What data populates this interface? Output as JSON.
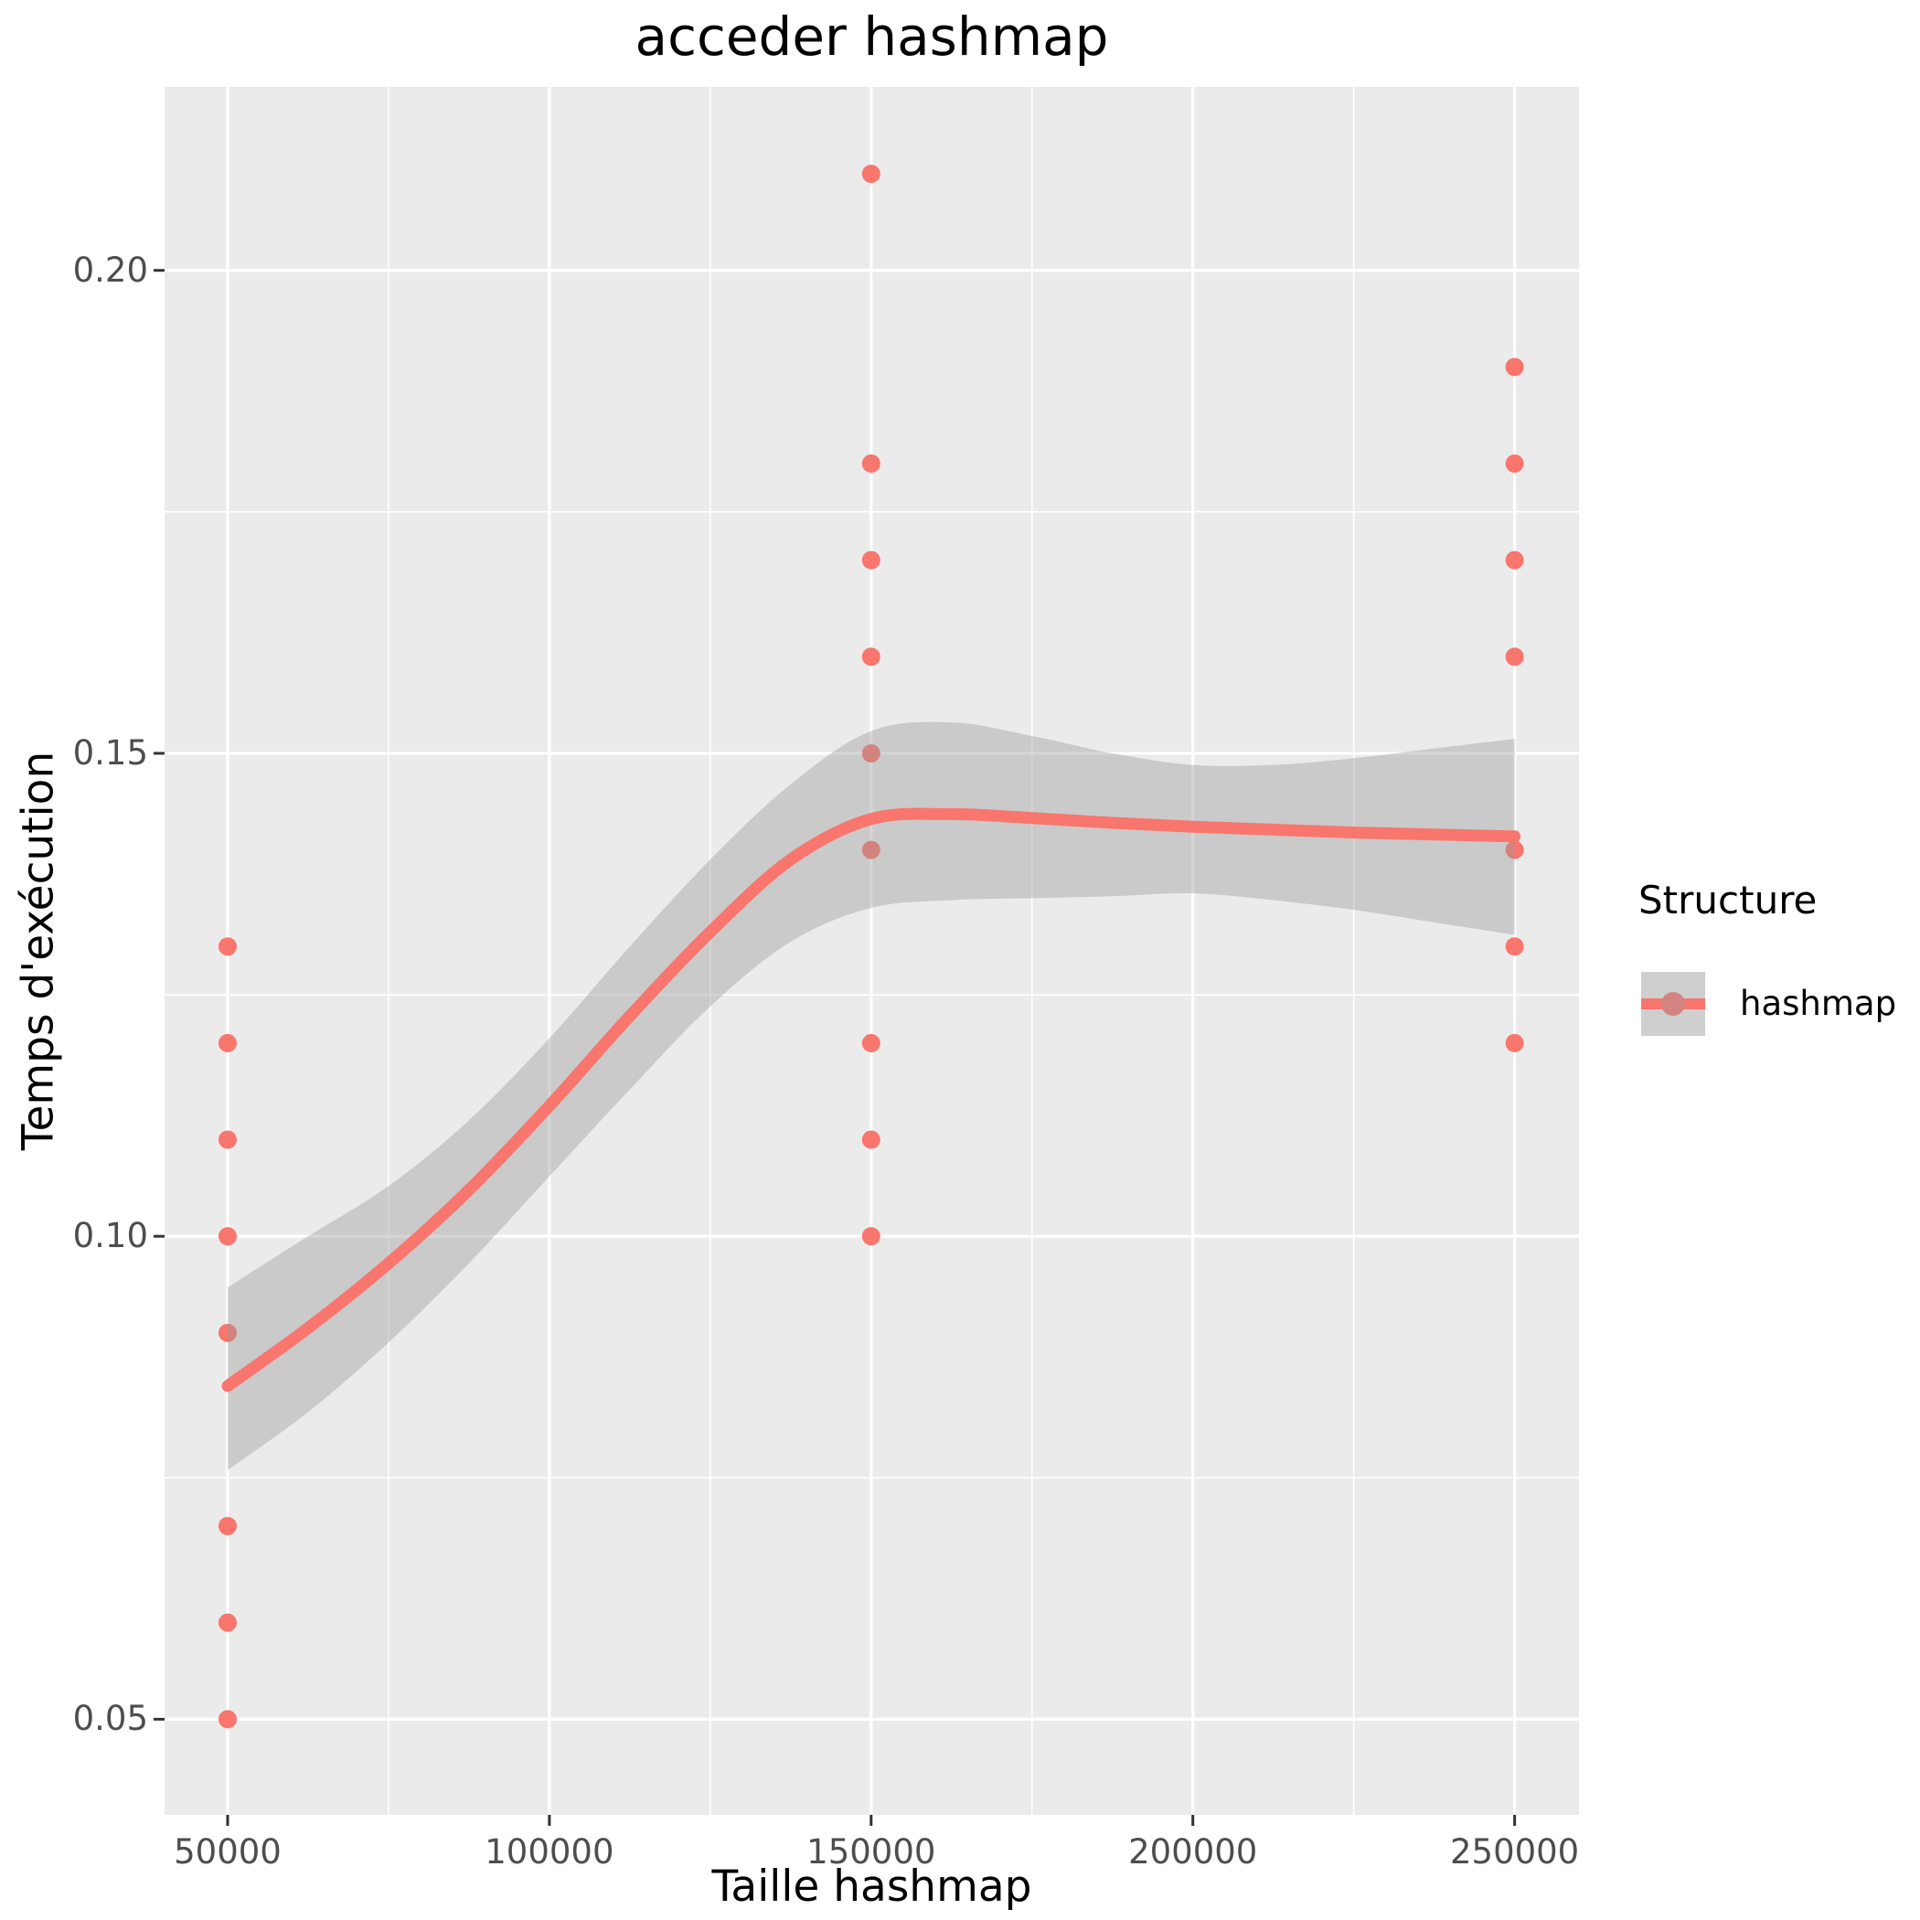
{
  "title": "acceder hashmap",
  "axes": {
    "x": {
      "label": "Taille hashmap",
      "ticks": [
        {
          "value": 50000,
          "label": "50000"
        },
        {
          "value": 100000,
          "label": "100000"
        },
        {
          "value": 150000,
          "label": "150000"
        },
        {
          "value": 200000,
          "label": "200000"
        },
        {
          "value": 250000,
          "label": "250000"
        }
      ],
      "minor": [
        75000,
        125000,
        175000,
        225000
      ],
      "domain": [
        40200,
        260000
      ]
    },
    "y": {
      "label": "Temps d'exécution",
      "ticks": [
        {
          "value": 0.2,
          "label": "0.20"
        },
        {
          "value": 0.15,
          "label": "0.15"
        },
        {
          "value": 0.1,
          "label": "0.10"
        },
        {
          "value": 0.05,
          "label": "0.05"
        }
      ],
      "minor": [
        0.175,
        0.125,
        0.075
      ],
      "domain": [
        0.0401,
        0.219
      ]
    }
  },
  "legend": {
    "title": "Structure",
    "items": [
      {
        "label": "hashmap",
        "color": "#F8766D"
      }
    ]
  },
  "colors": {
    "point": "#F8766D",
    "smooth_line": "#F8766D",
    "ribbon": "#999999",
    "ribbon_alpha": 0.4,
    "panel_bg": "#EBEBEB",
    "grid": "#FFFFFF",
    "axis_tick": "#333333",
    "tick_label": "#4D4D4D",
    "plot_bg": "#FFFFFF"
  },
  "chart_data": {
    "type": "scatter",
    "title": "acceder hashmap",
    "xlabel": "Taille hashmap",
    "ylabel": "Temps d'exécution",
    "xlim": [
      40200,
      260000
    ],
    "ylim": [
      0.0401,
      0.219
    ],
    "grid": true,
    "legend_position": "right",
    "series": [
      {
        "name": "hashmap",
        "points": [
          [
            50000,
            0.13
          ],
          [
            50000,
            0.12
          ],
          [
            50000,
            0.11
          ],
          [
            50000,
            0.1
          ],
          [
            50000,
            0.09
          ],
          [
            50000,
            0.07
          ],
          [
            50000,
            0.06
          ],
          [
            50000,
            0.05
          ],
          [
            150000,
            0.21
          ],
          [
            150000,
            0.18
          ],
          [
            150000,
            0.17
          ],
          [
            150000,
            0.16
          ],
          [
            150000,
            0.15
          ],
          [
            150000,
            0.14
          ],
          [
            150000,
            0.12
          ],
          [
            150000,
            0.11
          ],
          [
            150000,
            0.1
          ],
          [
            250000,
            0.19
          ],
          [
            250000,
            0.18
          ],
          [
            250000,
            0.17
          ],
          [
            250000,
            0.16
          ],
          [
            250000,
            0.14
          ],
          [
            250000,
            0.13
          ],
          [
            250000,
            0.12
          ]
        ],
        "smooth": {
          "x": [
            50000,
            62500,
            75000,
            87500,
            100000,
            112500,
            125000,
            137500,
            150000,
            162500,
            175000,
            187500,
            200000,
            212500,
            225000,
            237500,
            250000
          ],
          "y": [
            0.0845,
            0.0905,
            0.0972,
            0.1048,
            0.1135,
            0.1228,
            0.1315,
            0.139,
            0.1432,
            0.1437,
            0.1433,
            0.1428,
            0.1424,
            0.1421,
            0.1418,
            0.1416,
            0.1414
          ],
          "upper": [
            0.0947,
            0.1,
            0.1052,
            0.112,
            0.1205,
            0.13,
            0.139,
            0.1468,
            0.1523,
            0.1532,
            0.1518,
            0.15,
            0.1488,
            0.1488,
            0.1495,
            0.1505,
            0.1515
          ],
          "lower": [
            0.0758,
            0.0818,
            0.089,
            0.0972,
            0.1062,
            0.1152,
            0.1238,
            0.1305,
            0.134,
            0.1348,
            0.135,
            0.1352,
            0.1355,
            0.1348,
            0.1338,
            0.1325,
            0.1312
          ]
        }
      }
    ]
  }
}
